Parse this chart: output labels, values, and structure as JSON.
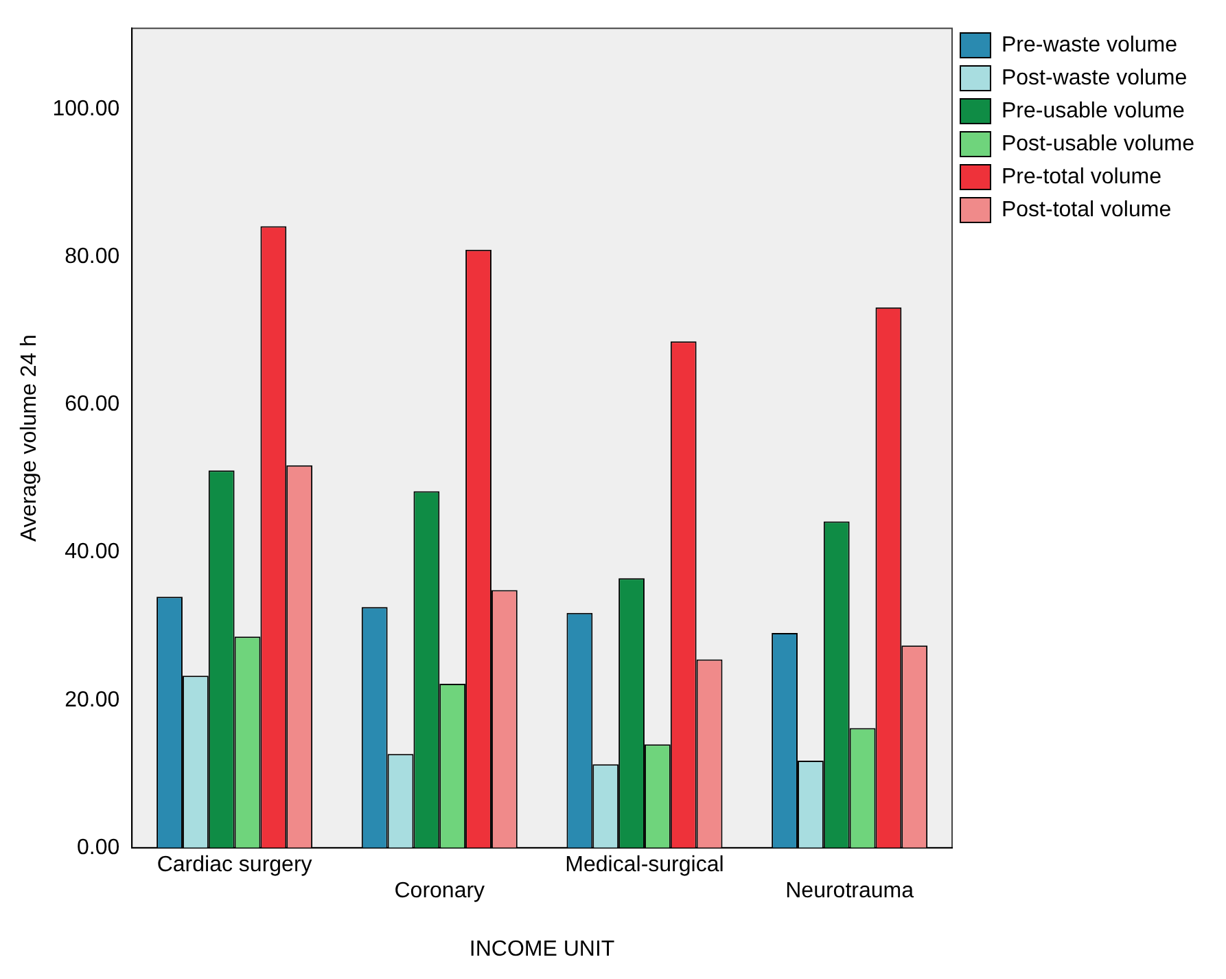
{
  "chart_data": {
    "type": "bar",
    "xlabel": "INCOME UNIT",
    "ylabel": "Average volume 24 h",
    "categories": [
      "Cardiac surgery",
      "Coronary",
      "Medical-surgical",
      "Neurotrauma"
    ],
    "series": [
      {
        "name": "Pre-waste volume",
        "color": "#2a8ab0",
        "values": [
          34.0,
          32.6,
          31.8,
          29.1
        ]
      },
      {
        "name": "Post-waste volume",
        "color": "#a8dde0",
        "values": [
          23.3,
          12.7,
          11.3,
          11.8
        ]
      },
      {
        "name": "Pre-usable volume",
        "color": "#0f8c45",
        "values": [
          51.1,
          48.3,
          36.5,
          44.2
        ]
      },
      {
        "name": "Post-usable volume",
        "color": "#6fd47c",
        "values": [
          28.6,
          22.2,
          14.0,
          16.2
        ]
      },
      {
        "name": "Pre-total volume",
        "color": "#ee323a",
        "values": [
          84.2,
          81.0,
          68.6,
          73.2
        ]
      },
      {
        "name": "Post-total volume",
        "color": "#f08a8a",
        "values": [
          51.8,
          34.9,
          25.5,
          27.4
        ]
      }
    ],
    "ylim": [
      0,
      111
    ],
    "yticks": [
      {
        "value": 0,
        "label": "0.00"
      },
      {
        "value": 20,
        "label": "20.00"
      },
      {
        "value": 40,
        "label": "40.00"
      },
      {
        "value": 60,
        "label": "60.00"
      },
      {
        "value": 80,
        "label": "80.00"
      },
      {
        "value": 100,
        "label": "100.00"
      }
    ],
    "grid": false,
    "legend": "top right"
  }
}
